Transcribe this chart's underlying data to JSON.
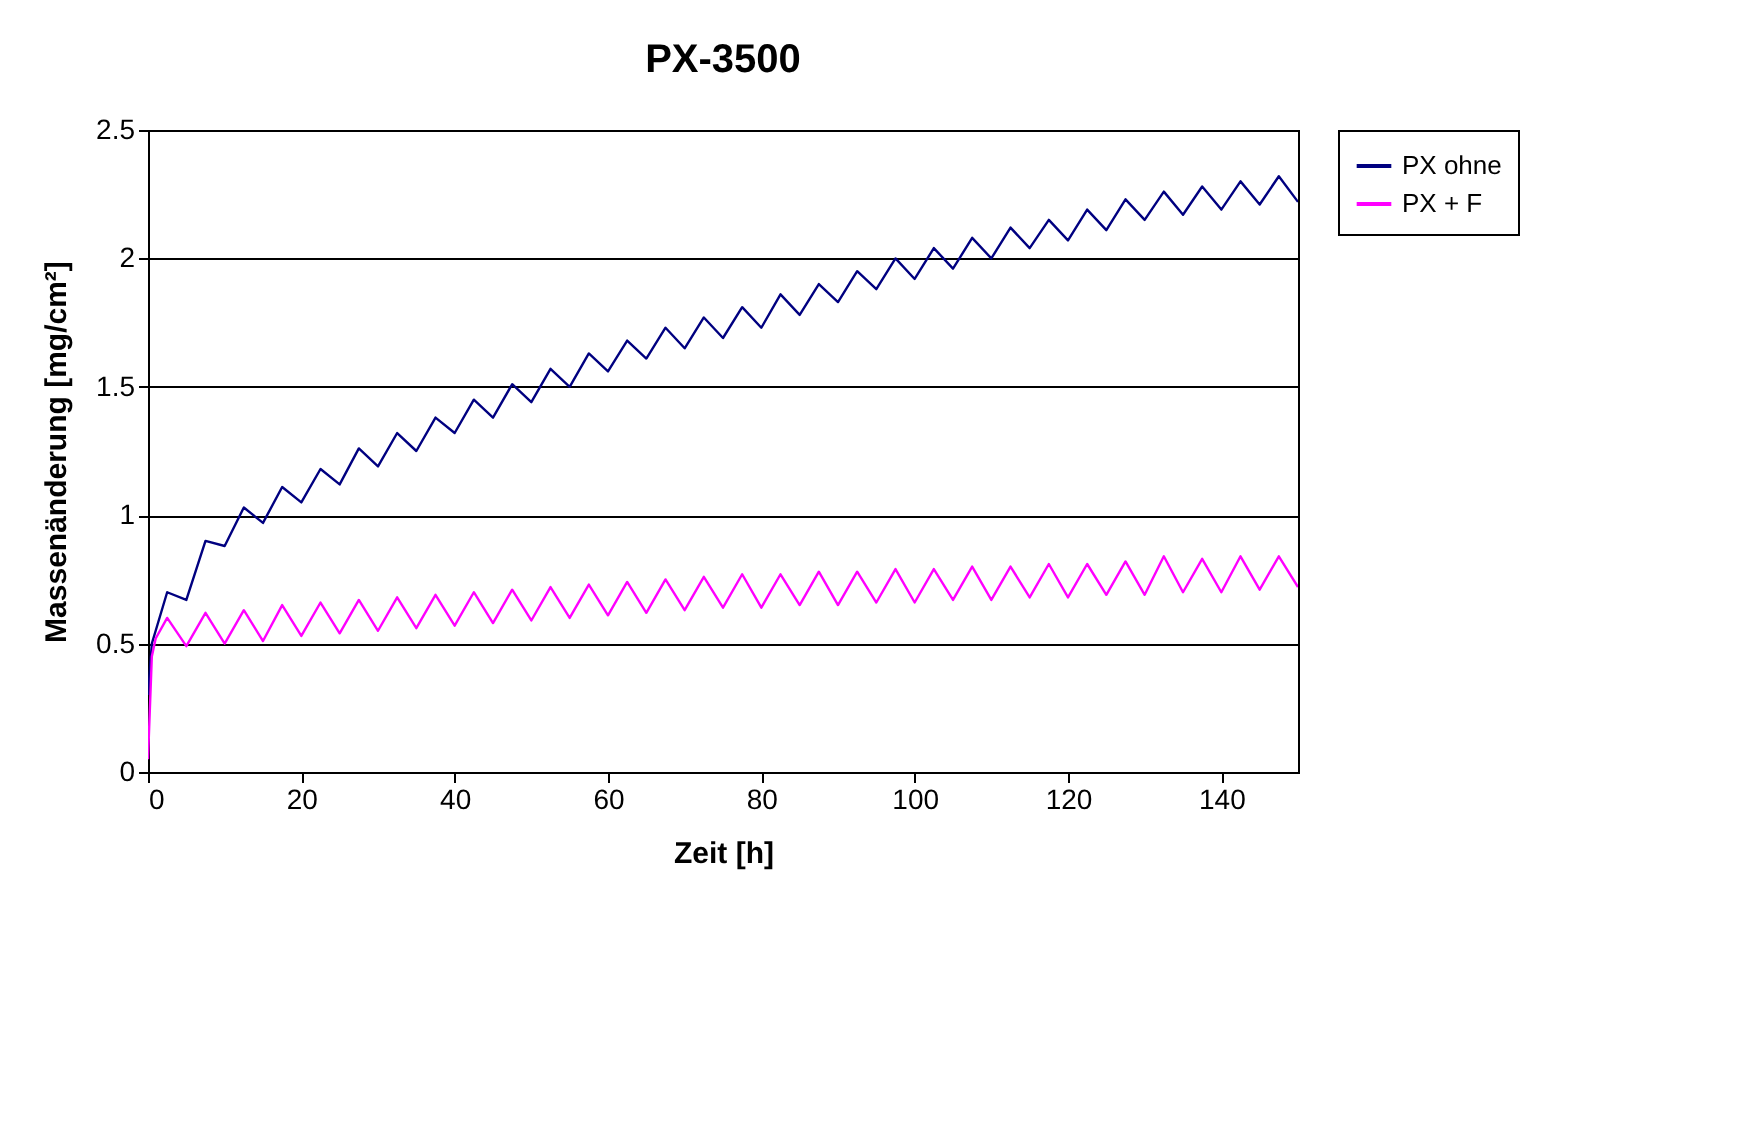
{
  "chart_data": {
    "type": "line",
    "title": "PX-3500",
    "xlabel": "Zeit [h]",
    "ylabel": "Massenänderung [mg/cm²]",
    "x": [
      0,
      0.5,
      1,
      2.5,
      5,
      7.5,
      10,
      12.5,
      15,
      17.5,
      20,
      22.5,
      25,
      27.5,
      30,
      32.5,
      35,
      37.5,
      40,
      42.5,
      45,
      47.5,
      50,
      52.5,
      55,
      57.5,
      60,
      62.5,
      65,
      67.5,
      70,
      72.5,
      75,
      77.5,
      80,
      82.5,
      85,
      87.5,
      90,
      92.5,
      95,
      97.5,
      100,
      102.5,
      105,
      107.5,
      110,
      112.5,
      115,
      117.5,
      120,
      122.5,
      125,
      127.5,
      130,
      132.5,
      135,
      137.5,
      140,
      142.5,
      145,
      147.5,
      150
    ],
    "series": [
      {
        "name": "PX ohne",
        "color": "#000080",
        "values": [
          0.3,
          0.5,
          0.55,
          0.7,
          0.67,
          0.9,
          0.88,
          1.03,
          0.97,
          1.11,
          1.05,
          1.18,
          1.12,
          1.26,
          1.19,
          1.32,
          1.25,
          1.38,
          1.32,
          1.45,
          1.38,
          1.51,
          1.44,
          1.57,
          1.5,
          1.63,
          1.56,
          1.68,
          1.61,
          1.73,
          1.65,
          1.77,
          1.69,
          1.81,
          1.73,
          1.86,
          1.78,
          1.9,
          1.83,
          1.95,
          1.88,
          2.0,
          1.92,
          2.04,
          1.96,
          2.08,
          2.0,
          2.12,
          2.04,
          2.15,
          2.07,
          2.19,
          2.11,
          2.23,
          2.15,
          2.26,
          2.17,
          2.28,
          2.19,
          2.3,
          2.21,
          2.32,
          2.22
        ]
      },
      {
        "name": "PX + F",
        "color": "#ff00ff",
        "values": [
          0.05,
          0.45,
          0.52,
          0.6,
          0.49,
          0.62,
          0.5,
          0.63,
          0.51,
          0.65,
          0.53,
          0.66,
          0.54,
          0.67,
          0.55,
          0.68,
          0.56,
          0.69,
          0.57,
          0.7,
          0.58,
          0.71,
          0.59,
          0.72,
          0.6,
          0.73,
          0.61,
          0.74,
          0.62,
          0.75,
          0.63,
          0.76,
          0.64,
          0.77,
          0.64,
          0.77,
          0.65,
          0.78,
          0.65,
          0.78,
          0.66,
          0.79,
          0.66,
          0.79,
          0.67,
          0.8,
          0.67,
          0.8,
          0.68,
          0.81,
          0.68,
          0.81,
          0.69,
          0.82,
          0.69,
          0.84,
          0.7,
          0.83,
          0.7,
          0.84,
          0.71,
          0.84,
          0.72
        ]
      }
    ],
    "xlim": [
      0,
      150
    ],
    "xticks": [
      0,
      20,
      40,
      60,
      80,
      100,
      120,
      140
    ],
    "ylim": [
      0,
      2.5
    ],
    "yticks": [
      0,
      0.5,
      1,
      1.5,
      2,
      2.5
    ],
    "grid": "y",
    "legend": "right"
  }
}
